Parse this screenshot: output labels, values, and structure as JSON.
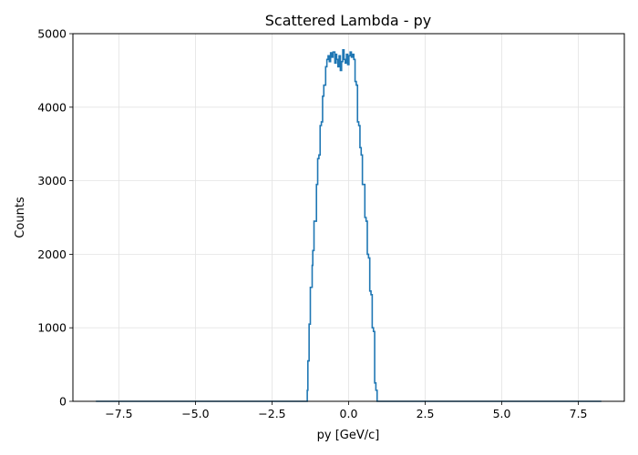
{
  "chart_data": {
    "type": "histogram",
    "title": "Scattered Lambda - py",
    "xlabel": "py [GeV/c]",
    "ylabel": "Counts",
    "xlim": [
      -9.0,
      9.0
    ],
    "ylim": [
      0,
      5000
    ],
    "grid": true,
    "x_ticks": [
      -7.5,
      -5.0,
      -2.5,
      0.0,
      2.5,
      5.0,
      7.5
    ],
    "x_tick_labels": [
      "−7.5",
      "−5.0",
      "−2.5",
      "0.0",
      "2.5",
      "5.0",
      "7.5"
    ],
    "y_ticks": [
      0,
      1000,
      2000,
      3000,
      4000,
      5000
    ],
    "y_tick_labels": [
      "0",
      "1000",
      "2000",
      "3000",
      "4000",
      "5000"
    ],
    "line_color": "#1f77b4",
    "series": [
      {
        "x": [
          -8.25,
          -1.35,
          -1.33,
          -1.29,
          -1.25,
          -1.19,
          -1.17,
          -1.13,
          -1.05,
          -1.01,
          -0.97,
          -0.93,
          -0.89,
          -0.85,
          -0.81,
          -0.75,
          -0.71,
          -0.67,
          -0.63,
          -0.59,
          -0.55,
          -0.51,
          -0.45,
          -0.41,
          -0.39,
          -0.35,
          -0.31,
          -0.27,
          -0.23,
          -0.19,
          -0.15,
          -0.11,
          -0.07,
          -0.03,
          0.01,
          0.05,
          0.09,
          0.13,
          0.17,
          0.21,
          0.25,
          0.29,
          0.33,
          0.37,
          0.41,
          0.45,
          0.49,
          0.53,
          0.57,
          0.61,
          0.65,
          0.69,
          0.73,
          0.77,
          0.81,
          0.85,
          0.89,
          0.93,
          0.97,
          1.01,
          1.05,
          1.09,
          1.13,
          1.17,
          1.21,
          1.25,
          1.29,
          1.33,
          8.25
        ],
        "y": [
          0,
          150,
          550,
          1050,
          1550,
          1850,
          2050,
          2450,
          2950,
          3300,
          3350,
          3750,
          3800,
          4150,
          4300,
          4550,
          4650,
          4700,
          4620,
          4740,
          4680,
          4750,
          4600,
          4720,
          4650,
          4550,
          4700,
          4500,
          4620,
          4780,
          4650,
          4600,
          4720,
          4580,
          4700,
          4750,
          4680,
          4720,
          4650,
          4350,
          4300,
          3800,
          3750,
          3450,
          3350,
          2950,
          2950,
          2500,
          2450,
          2000,
          1950,
          1500,
          1450,
          1000,
          950,
          250,
          150,
          0,
          0,
          0,
          0,
          0,
          0,
          0,
          0,
          0,
          0,
          0,
          0
        ]
      }
    ]
  }
}
